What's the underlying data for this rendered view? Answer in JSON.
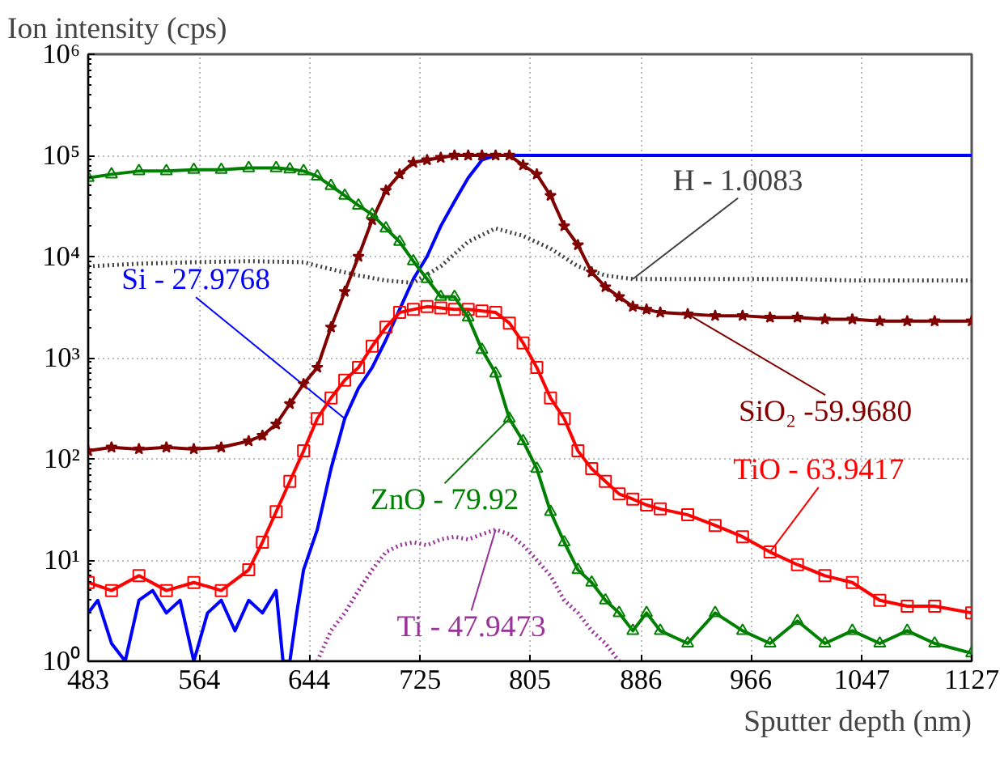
{
  "chart_data": {
    "type": "line",
    "xlabel": "Sputter depth (nm)",
    "ylabel": "Ion intensity (cps)",
    "log": "y",
    "xlim": [
      483,
      1127
    ],
    "xticks": [
      483,
      564,
      644,
      725,
      805,
      886,
      966,
      1047,
      1127
    ],
    "ylim": [
      1,
      1000000
    ],
    "yticks": [
      {
        "value": 1,
        "label": "10⁰"
      },
      {
        "value": 10,
        "label": "10¹"
      },
      {
        "value": 100,
        "label": "10²"
      },
      {
        "value": 1000,
        "label": "10³"
      },
      {
        "value": 10000,
        "label": "10⁴"
      },
      {
        "value": 100000,
        "label": "10⁵"
      },
      {
        "value": 1000000,
        "label": "10⁶"
      }
    ],
    "grid": true,
    "series": [
      {
        "name": "Si - 27.9768",
        "color": "#0000ff",
        "marker": "none",
        "line_style": "solid",
        "x": [
          483,
          490,
          500,
          510,
          520,
          530,
          540,
          550,
          560,
          570,
          580,
          590,
          600,
          610,
          620,
          625,
          630,
          635,
          640,
          650,
          660,
          670,
          680,
          690,
          700,
          710,
          720,
          730,
          740,
          750,
          760,
          770,
          780,
          800,
          850,
          900,
          950,
          1000,
          1050,
          1100,
          1127
        ],
        "values": [
          3,
          4,
          1.5,
          1,
          4,
          5,
          3,
          4,
          1,
          3,
          4,
          2,
          4,
          3,
          5,
          1,
          1,
          3,
          8,
          20,
          80,
          250,
          500,
          800,
          1500,
          3000,
          6000,
          10000,
          20000,
          35000,
          60000,
          90000,
          100000,
          100000,
          100000,
          100000,
          100000,
          100000,
          100000,
          100000,
          100000
        ]
      },
      {
        "name": "H - 1.0083",
        "color": "#404040",
        "marker": "none",
        "line_style": "dotted",
        "x": [
          483,
          520,
          560,
          600,
          640,
          660,
          680,
          700,
          720,
          740,
          760,
          780,
          800,
          820,
          840,
          860,
          880,
          920,
          960,
          1000,
          1040,
          1080,
          1127
        ],
        "values": [
          8000,
          8500,
          8800,
          9000,
          8800,
          7500,
          6500,
          5800,
          5500,
          8000,
          14000,
          19000,
          16000,
          12000,
          8000,
          6500,
          6000,
          6000,
          6000,
          6000,
          5800,
          5800,
          5800
        ]
      },
      {
        "name": "SiO₂ -59.9680",
        "color": "#800000",
        "marker": "star",
        "line_style": "solid",
        "x": [
          483,
          500,
          520,
          540,
          560,
          580,
          600,
          610,
          620,
          630,
          640,
          650,
          660,
          670,
          680,
          690,
          700,
          710,
          720,
          730,
          740,
          750,
          760,
          770,
          780,
          790,
          800,
          810,
          820,
          830,
          840,
          850,
          860,
          870,
          880,
          890,
          900,
          920,
          940,
          960,
          980,
          1000,
          1020,
          1040,
          1060,
          1080,
          1100,
          1127
        ],
        "values": [
          120,
          130,
          125,
          130,
          125,
          130,
          150,
          170,
          220,
          350,
          550,
          800,
          2000,
          4500,
          10000,
          23000,
          45000,
          65000,
          85000,
          90000,
          95000,
          100000,
          100000,
          100000,
          100000,
          100000,
          80000,
          65000,
          40000,
          20000,
          13000,
          7000,
          5000,
          4000,
          3200,
          3000,
          2800,
          2700,
          2600,
          2600,
          2500,
          2500,
          2400,
          2400,
          2300,
          2300,
          2300,
          2300
        ]
      },
      {
        "name": "TiO - 63.9417",
        "color": "#ff0000",
        "marker": "square",
        "line_style": "solid",
        "x": [
          483,
          500,
          520,
          540,
          560,
          580,
          600,
          610,
          620,
          630,
          640,
          650,
          660,
          670,
          680,
          690,
          700,
          710,
          720,
          730,
          740,
          750,
          760,
          770,
          780,
          790,
          800,
          810,
          820,
          830,
          840,
          850,
          860,
          870,
          880,
          890,
          900,
          920,
          940,
          960,
          980,
          1000,
          1020,
          1040,
          1060,
          1080,
          1100,
          1127
        ],
        "values": [
          6,
          5,
          7,
          5,
          6,
          5,
          8,
          15,
          30,
          60,
          120,
          250,
          400,
          600,
          800,
          1300,
          2000,
          2800,
          3000,
          3200,
          3100,
          3000,
          3000,
          2900,
          2800,
          2200,
          1400,
          800,
          400,
          250,
          120,
          80,
          60,
          45,
          40,
          35,
          32,
          28,
          22,
          17,
          12,
          9,
          7,
          6,
          4,
          3.5,
          3.5,
          3
        ]
      },
      {
        "name": "ZnO - 79.92",
        "color": "#008000",
        "marker": "triangle",
        "line_style": "solid",
        "x": [
          483,
          500,
          520,
          540,
          560,
          580,
          600,
          620,
          630,
          640,
          650,
          660,
          670,
          680,
          690,
          700,
          710,
          720,
          730,
          740,
          750,
          760,
          770,
          780,
          790,
          800,
          810,
          820,
          830,
          840,
          850,
          860,
          870,
          880,
          890,
          900,
          920,
          940,
          960,
          980,
          1000,
          1020,
          1040,
          1060,
          1080,
          1100,
          1127
        ],
        "values": [
          60000,
          65000,
          70000,
          70000,
          72000,
          72000,
          75000,
          75000,
          73000,
          70000,
          62000,
          50000,
          40000,
          32000,
          26000,
          19000,
          14000,
          9000,
          6000,
          4000,
          4000,
          2500,
          1200,
          700,
          250,
          150,
          80,
          30,
          15,
          8,
          6,
          4,
          3,
          2,
          3,
          2,
          1.5,
          3,
          2,
          1.5,
          2.5,
          1.5,
          2,
          1.5,
          2,
          1.5,
          1.2
        ]
      },
      {
        "name": "Ti - 47.9473",
        "color": "#993399",
        "marker": "none",
        "line_style": "dotted",
        "x": [
          650,
          660,
          670,
          680,
          690,
          700,
          710,
          720,
          730,
          740,
          750,
          760,
          770,
          780,
          790,
          800,
          810,
          820,
          830,
          840,
          850,
          860,
          870
        ],
        "values": [
          1,
          2,
          3,
          5,
          8,
          12,
          14,
          15,
          14,
          16,
          17,
          16,
          18,
          20,
          18,
          14,
          10,
          7,
          4,
          3,
          2,
          1.5,
          1
        ]
      }
    ]
  }
}
